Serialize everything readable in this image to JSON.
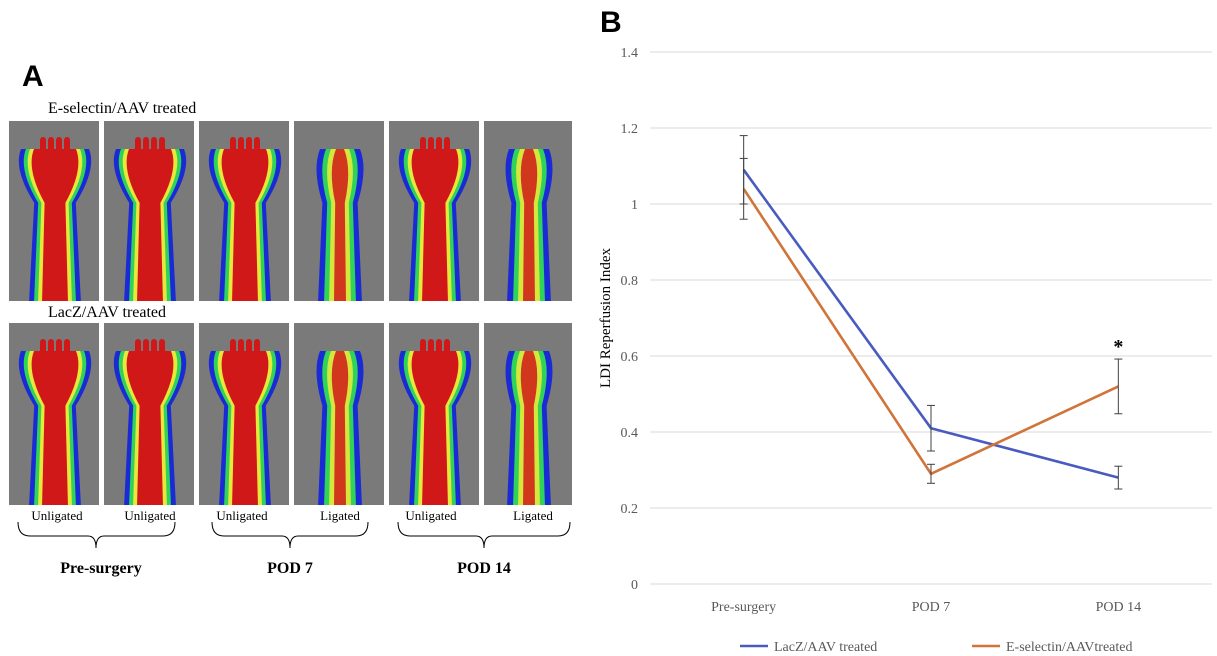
{
  "panelA": {
    "letter": "A",
    "row1_title": "E-selectin/AAV  treated",
    "row2_title": "LacZ/AAV treated",
    "image_labels": [
      "Unligated",
      "Unligated",
      "Unligated",
      "Ligated",
      "Unligated",
      "Ligated"
    ],
    "groups": [
      "Pre-surgery",
      "POD 7",
      "POD 14"
    ]
  },
  "panelB": {
    "letter": "B"
  },
  "chart_data": {
    "type": "line",
    "categories": [
      "Pre-surgery",
      "POD 7",
      "POD 14"
    ],
    "ylabel": "LDI Reperfusion Index",
    "xlabel": "",
    "ylim": [
      0,
      1.4
    ],
    "yticks": [
      "0",
      "0.2",
      "0.4",
      "0.6",
      "0.8",
      "1",
      "1.2",
      "1.4"
    ],
    "grid": true,
    "legend": "bottom",
    "series": [
      {
        "name": "LacZ/AAV treated",
        "color": "#4a5bbf",
        "values": [
          1.09,
          0.41,
          0.28
        ],
        "errors": [
          0.09,
          0.06,
          0.03
        ]
      },
      {
        "name": "E-selectin/AAVtreated",
        "color": "#d0743a",
        "values": [
          1.04,
          0.29,
          0.52
        ],
        "errors": [
          0.08,
          0.025,
          0.072
        ]
      }
    ],
    "annotations": [
      {
        "text": "*",
        "category": "POD 14"
      }
    ]
  }
}
